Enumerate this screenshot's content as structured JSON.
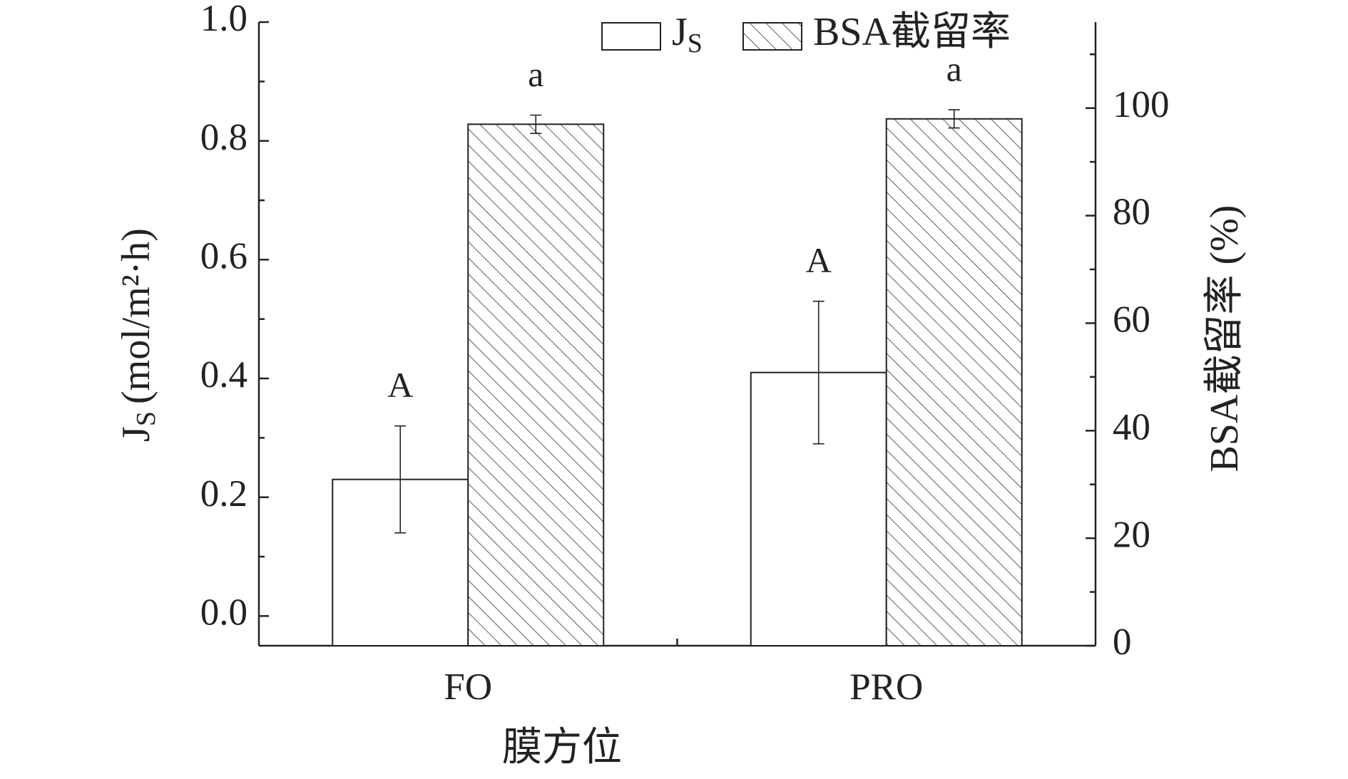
{
  "chart_data": {
    "type": "bar",
    "xlabel": "膜方位",
    "ylabel": {
      "main": "J",
      "sub": "S",
      "unit": "(mol/m²·h)"
    },
    "y2label": "BSA截留率 (%)",
    "categories": [
      "FO",
      "PRO"
    ],
    "series": [
      {
        "name": "J",
        "name_subscript": "S",
        "color": "#ffffff",
        "hatch": false,
        "values": [
          0.23,
          0.41
        ],
        "errors": [
          0.09,
          0.12
        ],
        "labels": [
          "A",
          "A"
        ]
      },
      {
        "name": "BSA截留率",
        "color": "#ffffff",
        "hatch": true,
        "axis": "y2",
        "values": [
          97,
          98
        ],
        "errors": [
          1.7,
          1.7
        ],
        "labels": [
          "a",
          "a"
        ]
      }
    ],
    "ylim": [
      -0.05,
      1.0
    ],
    "yticks": [
      {
        "value": 0,
        "label": "0.0"
      },
      0.2,
      0.4,
      0.6,
      0.8,
      {
        "value": 1,
        "label": "1.0"
      }
    ],
    "y2lim": [
      0,
      116
    ],
    "y2ticks": [
      0,
      20,
      40,
      60,
      80,
      100
    ],
    "legend": "top-right"
  }
}
